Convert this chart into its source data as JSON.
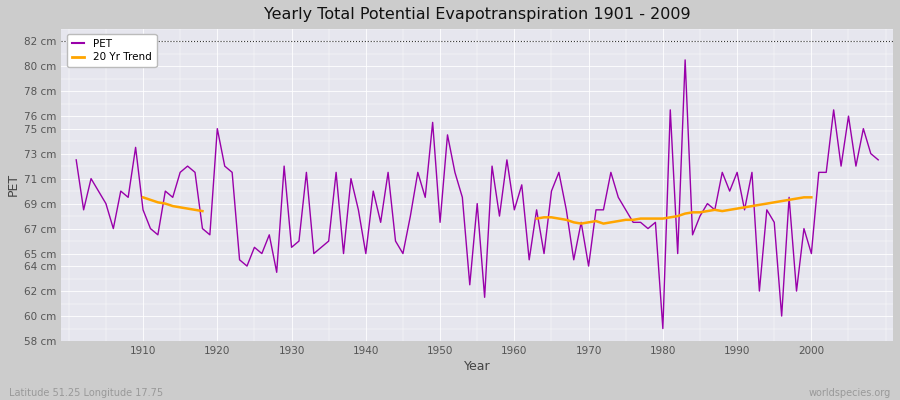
{
  "title": "Yearly Total Potential Evapotranspiration 1901 - 2009",
  "xlabel": "Year",
  "ylabel": "PET",
  "subtitle": "Latitude 51.25 Longitude 17.75",
  "watermark": "worldspecies.org",
  "pet_color": "#9900AA",
  "trend_color": "#FFA500",
  "fig_bg_color": "#CCCCCC",
  "plot_bg_color": "#E6E6EE",
  "ylim_min": 58,
  "ylim_max": 83,
  "yticks": [
    58,
    60,
    62,
    64,
    65,
    67,
    69,
    71,
    73,
    75,
    76,
    78,
    80,
    82
  ],
  "xlim_min": 1899,
  "xlim_max": 2011,
  "xticks": [
    1910,
    1920,
    1930,
    1940,
    1950,
    1960,
    1970,
    1980,
    1990,
    2000
  ],
  "years": [
    1901,
    1902,
    1903,
    1904,
    1905,
    1906,
    1907,
    1908,
    1909,
    1910,
    1911,
    1912,
    1913,
    1914,
    1915,
    1916,
    1917,
    1918,
    1919,
    1920,
    1921,
    1922,
    1923,
    1924,
    1925,
    1926,
    1927,
    1928,
    1929,
    1930,
    1931,
    1932,
    1933,
    1934,
    1935,
    1936,
    1937,
    1938,
    1939,
    1940,
    1941,
    1942,
    1943,
    1944,
    1945,
    1946,
    1947,
    1948,
    1949,
    1950,
    1951,
    1952,
    1953,
    1954,
    1955,
    1956,
    1957,
    1958,
    1959,
    1960,
    1961,
    1962,
    1963,
    1964,
    1965,
    1966,
    1967,
    1968,
    1969,
    1970,
    1971,
    1972,
    1973,
    1974,
    1975,
    1976,
    1977,
    1978,
    1979,
    1980,
    1981,
    1982,
    1983,
    1984,
    1985,
    1986,
    1987,
    1988,
    1989,
    1990,
    1991,
    1992,
    1993,
    1994,
    1995,
    1996,
    1997,
    1998,
    1999,
    2000,
    2001,
    2002,
    2003,
    2004,
    2005,
    2006,
    2007,
    2008,
    2009
  ],
  "pet": [
    72.5,
    68.5,
    71.0,
    70.0,
    69.0,
    67.0,
    70.0,
    69.5,
    73.5,
    68.5,
    67.0,
    66.5,
    70.0,
    69.5,
    71.5,
    72.0,
    71.5,
    67.0,
    66.5,
    75.0,
    72.0,
    71.5,
    64.5,
    64.0,
    65.5,
    65.0,
    66.5,
    63.5,
    72.0,
    65.5,
    66.0,
    71.5,
    65.0,
    65.5,
    66.0,
    71.5,
    65.0,
    71.0,
    68.5,
    65.0,
    70.0,
    67.5,
    71.5,
    66.0,
    65.0,
    68.0,
    71.5,
    69.5,
    75.5,
    67.5,
    74.5,
    71.5,
    69.5,
    62.5,
    69.0,
    61.5,
    72.0,
    68.0,
    72.5,
    68.5,
    70.5,
    64.5,
    68.5,
    65.0,
    70.0,
    71.5,
    68.5,
    64.5,
    67.5,
    64.0,
    68.5,
    68.5,
    71.5,
    69.5,
    68.5,
    67.5,
    67.5,
    67.0,
    67.5,
    59.0,
    76.5,
    65.0,
    80.5,
    66.5,
    68.0,
    69.0,
    68.5,
    71.5,
    70.0,
    71.5,
    68.5,
    71.5,
    62.0,
    68.5,
    67.5,
    60.0,
    69.5,
    62.0,
    67.0,
    65.0,
    71.5,
    71.5,
    76.5,
    72.0,
    76.0,
    72.0,
    75.0,
    73.0,
    72.5
  ],
  "trend_seg1_years": [
    1910,
    1911,
    1912,
    1913,
    1914,
    1915,
    1916,
    1917,
    1918
  ],
  "trend_seg1": [
    69.5,
    69.3,
    69.1,
    69.0,
    68.8,
    68.7,
    68.6,
    68.5,
    68.4
  ],
  "trend_seg2_years": [
    1963,
    1964,
    1965,
    1966,
    1967,
    1968,
    1969,
    1970,
    1971,
    1972,
    1973,
    1974,
    1975,
    1976,
    1977,
    1978,
    1979,
    1980,
    1981,
    1982,
    1983,
    1984,
    1985,
    1986,
    1987,
    1988,
    1989,
    1990,
    1991,
    1992,
    1993,
    1994,
    1995,
    1996,
    1997,
    1998,
    1999,
    2000
  ],
  "trend_seg2": [
    67.8,
    67.9,
    67.9,
    67.8,
    67.7,
    67.5,
    67.4,
    67.5,
    67.6,
    67.4,
    67.5,
    67.6,
    67.7,
    67.7,
    67.8,
    67.8,
    67.8,
    67.8,
    67.9,
    68.0,
    68.2,
    68.3,
    68.3,
    68.4,
    68.5,
    68.4,
    68.5,
    68.6,
    68.7,
    68.8,
    68.9,
    69.0,
    69.1,
    69.2,
    69.3,
    69.4,
    69.5,
    69.5
  ]
}
